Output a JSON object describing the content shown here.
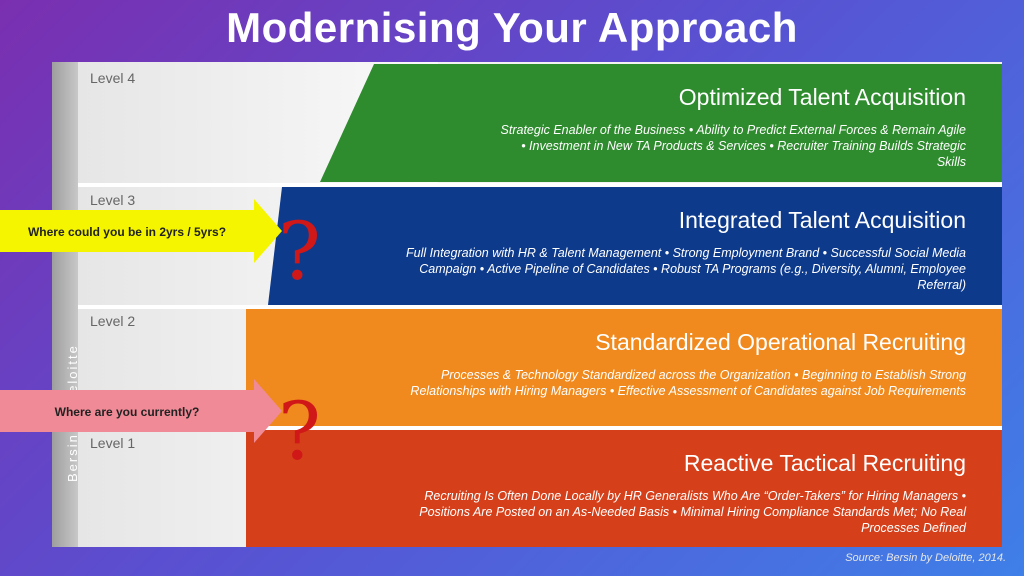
{
  "title": "Modernising Your Approach",
  "levels": [
    {
      "label": "Level 4",
      "title": "Optimized Talent Acquisition",
      "description": "Strategic Enabler of the Business • Ability to Predict External Forces & Remain Agile • Investment in New TA Products & Services • Recruiter Training Builds Strategic Skills",
      "color": "#2e8b2e"
    },
    {
      "label": "Level 3",
      "title": "Integrated Talent Acquisition",
      "description": "Full Integration with HR & Talent Management • Strong Employment Brand • Successful Social Media Campaign • Active Pipeline of Candidates • Robust TA Programs (e.g., Diversity, Alumni, Employee Referral)",
      "color": "#0e3a8c"
    },
    {
      "label": "Level 2",
      "title": "Standardized Operational Recruiting",
      "description": "Processes & Technology Standardized across the Organization • Beginning to Establish Strong Relationships with Hiring Managers • Effective Assessment of Candidates against Job Requirements",
      "color": "#f08a1e"
    },
    {
      "label": "Level 1",
      "title": "Reactive Tactical Recruiting",
      "description": "Recruiting Is Often Done Locally by HR Generalists Who Are “Order-Takers” for Hiring Managers • Positions Are Posted on an As-Needed Basis • Minimal Hiring Compliance Standards Met; No Real Processes Defined",
      "color": "#d5401a"
    }
  ],
  "sidebar_text": "Bersin by Deloitte",
  "callouts": [
    {
      "text": "Where could you be in 2yrs / 5yrs?",
      "color": "#f5f500"
    },
    {
      "text": "Where are you currently?",
      "color": "#f08a96"
    }
  ],
  "question_mark": "?",
  "source": "Source: Bersin by Deloitte, 2014."
}
